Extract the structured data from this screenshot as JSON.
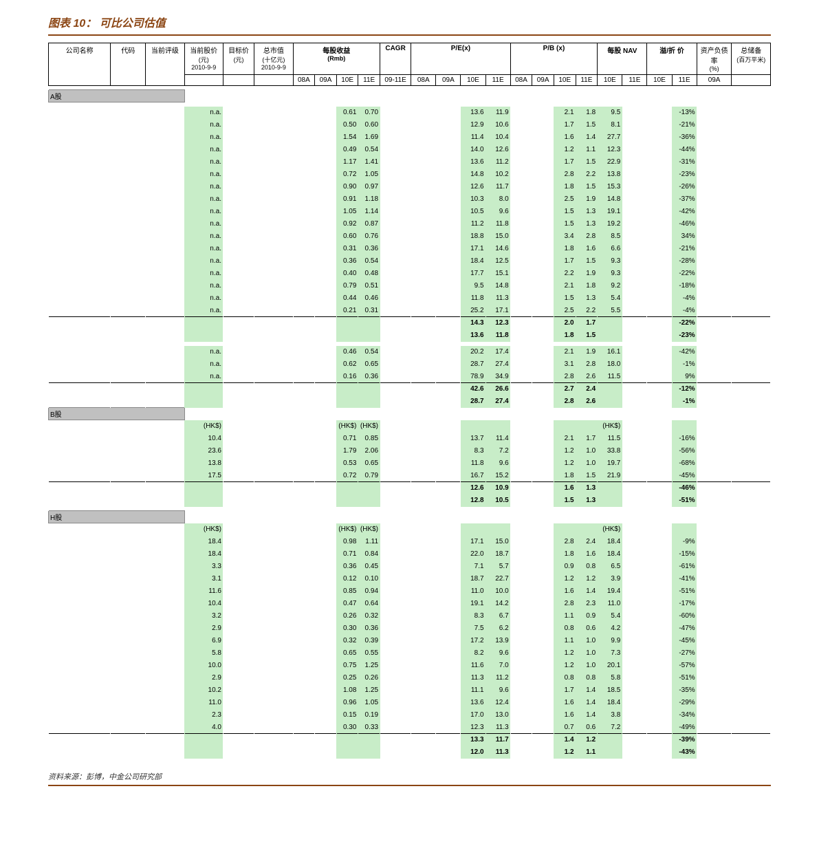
{
  "title": "图表 10： 可比公司估值",
  "source": "资料来源：彭博，中金公司研究部",
  "header": {
    "company": "公司名称",
    "code": "代码",
    "rating": "当前评级",
    "price": "当前股价",
    "price_unit": "(元)",
    "price_date": "2010-9-9",
    "target": "目标价",
    "target_unit": "(元)",
    "mcap": "总市值",
    "mcap_unit": "(十亿元)",
    "mcap_date": "2010-9-9",
    "eps_group": "每股收益",
    "eps_unit": "(Rmb)",
    "cagr": "CAGR",
    "pe_group": "P/E(x)",
    "pb_group": "P/B (x)",
    "nav_group": "每股\nNAV",
    "prem_group": "溢/折\n价",
    "debt": "资产负债率",
    "debt_unit": "(%)",
    "land": "总储备",
    "land_unit": "(百万平米)",
    "y08a": "08A",
    "y09a": "09A",
    "y10e": "10E",
    "y11e": "11E",
    "y0911e": "09-11E"
  },
  "sections": {
    "a": "A股",
    "b": "B股",
    "h": "H股",
    "hk": "(HK$)"
  },
  "rows_a1": [
    {
      "rating": "n.a.",
      "eps10": "0.61",
      "eps11": "0.70",
      "pe10": "13.6",
      "pe11": "11.9",
      "pb10": "2.1",
      "pb11": "1.8",
      "nav10": "9.5",
      "prem11": "-13%"
    },
    {
      "rating": "n.a.",
      "eps10": "0.50",
      "eps11": "0.60",
      "pe10": "12.9",
      "pe11": "10.6",
      "pb10": "1.7",
      "pb11": "1.5",
      "nav10": "8.1",
      "prem11": "-21%"
    },
    {
      "rating": "n.a.",
      "eps10": "1.54",
      "eps11": "1.69",
      "pe10": "11.4",
      "pe11": "10.4",
      "pb10": "1.6",
      "pb11": "1.4",
      "nav10": "27.7",
      "prem11": "-36%"
    },
    {
      "rating": "n.a.",
      "eps10": "0.49",
      "eps11": "0.54",
      "pe10": "14.0",
      "pe11": "12.6",
      "pb10": "1.2",
      "pb11": "1.1",
      "nav10": "12.3",
      "prem11": "-44%"
    },
    {
      "rating": "n.a.",
      "eps10": "1.17",
      "eps11": "1.41",
      "pe10": "13.6",
      "pe11": "11.2",
      "pb10": "1.7",
      "pb11": "1.5",
      "nav10": "22.9",
      "prem11": "-31%"
    },
    {
      "rating": "n.a.",
      "eps10": "0.72",
      "eps11": "1.05",
      "pe10": "14.8",
      "pe11": "10.2",
      "pb10": "2.8",
      "pb11": "2.2",
      "nav10": "13.8",
      "prem11": "-23%"
    },
    {
      "rating": "n.a.",
      "eps10": "0.90",
      "eps11": "0.97",
      "pe10": "12.6",
      "pe11": "11.7",
      "pb10": "1.8",
      "pb11": "1.5",
      "nav10": "15.3",
      "prem11": "-26%"
    },
    {
      "rating": "n.a.",
      "eps10": "0.91",
      "eps11": "1.18",
      "pe10": "10.3",
      "pe11": "8.0",
      "pb10": "2.5",
      "pb11": "1.9",
      "nav10": "14.8",
      "prem11": "-37%"
    },
    {
      "rating": "n.a.",
      "eps10": "1.05",
      "eps11": "1.14",
      "pe10": "10.5",
      "pe11": "9.6",
      "pb10": "1.5",
      "pb11": "1.3",
      "nav10": "19.1",
      "prem11": "-42%"
    },
    {
      "rating": "n.a.",
      "eps10": "0.92",
      "eps11": "0.87",
      "pe10": "11.2",
      "pe11": "11.8",
      "pb10": "1.5",
      "pb11": "1.3",
      "nav10": "19.2",
      "prem11": "-46%"
    },
    {
      "rating": "n.a.",
      "eps10": "0.60",
      "eps11": "0.76",
      "pe10": "18.8",
      "pe11": "15.0",
      "pb10": "3.4",
      "pb11": "2.8",
      "nav10": "8.5",
      "prem11": "34%"
    },
    {
      "rating": "n.a.",
      "eps10": "0.31",
      "eps11": "0.36",
      "pe10": "17.1",
      "pe11": "14.6",
      "pb10": "1.8",
      "pb11": "1.6",
      "nav10": "6.6",
      "prem11": "-21%"
    },
    {
      "rating": "n.a.",
      "eps10": "0.36",
      "eps11": "0.54",
      "pe10": "18.4",
      "pe11": "12.5",
      "pb10": "1.7",
      "pb11": "1.5",
      "nav10": "9.3",
      "prem11": "-28%"
    },
    {
      "rating": "n.a.",
      "eps10": "0.40",
      "eps11": "0.48",
      "pe10": "17.7",
      "pe11": "15.1",
      "pb10": "2.2",
      "pb11": "1.9",
      "nav10": "9.3",
      "prem11": "-22%"
    },
    {
      "rating": "n.a.",
      "eps10": "0.79",
      "eps11": "0.51",
      "pe10": "9.5",
      "pe11": "14.8",
      "pb10": "2.1",
      "pb11": "1.8",
      "nav10": "9.2",
      "prem11": "-18%"
    },
    {
      "rating": "n.a.",
      "eps10": "0.44",
      "eps11": "0.46",
      "pe10": "11.8",
      "pe11": "11.3",
      "pb10": "1.5",
      "pb11": "1.3",
      "nav10": "5.4",
      "prem11": "-4%"
    },
    {
      "rating": "n.a.",
      "eps10": "0.21",
      "eps11": "0.31",
      "pe10": "25.2",
      "pe11": "17.1",
      "pb10": "2.5",
      "pb11": "2.2",
      "nav10": "5.5",
      "prem11": "-4%"
    }
  ],
  "summary_a1": [
    {
      "pe10": "14.3",
      "pe11": "12.3",
      "pb10": "2.0",
      "pb11": "1.7",
      "prem11": "-22%"
    },
    {
      "pe10": "13.6",
      "pe11": "11.8",
      "pb10": "1.8",
      "pb11": "1.5",
      "prem11": "-23%"
    }
  ],
  "rows_a2": [
    {
      "rating": "n.a.",
      "eps10": "0.46",
      "eps11": "0.54",
      "pe10": "20.2",
      "pe11": "17.4",
      "pb10": "2.1",
      "pb11": "1.9",
      "nav10": "16.1",
      "prem11": "-42%"
    },
    {
      "rating": "n.a.",
      "eps10": "0.62",
      "eps11": "0.65",
      "pe10": "28.7",
      "pe11": "27.4",
      "pb10": "3.1",
      "pb11": "2.8",
      "nav10": "18.0",
      "prem11": "-1%"
    },
    {
      "rating": "n.a.",
      "eps10": "0.16",
      "eps11": "0.36",
      "pe10": "78.9",
      "pe11": "34.9",
      "pb10": "2.8",
      "pb11": "2.6",
      "nav10": "11.5",
      "prem11": "9%"
    }
  ],
  "summary_a2": [
    {
      "pe10": "42.6",
      "pe11": "26.6",
      "pb10": "2.7",
      "pb11": "2.4",
      "prem11": "-12%"
    },
    {
      "pe10": "28.7",
      "pe11": "27.4",
      "pb10": "2.8",
      "pb11": "2.6",
      "prem11": "-1%"
    }
  ],
  "rows_b": [
    {
      "price": "10.4",
      "eps10": "0.71",
      "eps11": "0.85",
      "pe10": "13.7",
      "pe11": "11.4",
      "pb10": "2.1",
      "pb11": "1.7",
      "nav10": "11.5",
      "prem11": "-16%"
    },
    {
      "price": "23.6",
      "eps10": "1.79",
      "eps11": "2.06",
      "pe10": "8.3",
      "pe11": "7.2",
      "pb10": "1.2",
      "pb11": "1.0",
      "nav10": "33.8",
      "prem11": "-56%"
    },
    {
      "price": "13.8",
      "eps10": "0.53",
      "eps11": "0.65",
      "pe10": "11.8",
      "pe11": "9.6",
      "pb10": "1.2",
      "pb11": "1.0",
      "nav10": "19.7",
      "prem11": "-68%"
    },
    {
      "price": "17.5",
      "eps10": "0.72",
      "eps11": "0.79",
      "pe10": "16.7",
      "pe11": "15.2",
      "pb10": "1.8",
      "pb11": "1.5",
      "nav10": "21.9",
      "prem11": "-45%"
    }
  ],
  "summary_b": [
    {
      "pe10": "12.6",
      "pe11": "10.9",
      "pb10": "1.6",
      "pb11": "1.3",
      "prem11": "-46%"
    },
    {
      "pe10": "12.8",
      "pe11": "10.5",
      "pb10": "1.5",
      "pb11": "1.3",
      "prem11": "-51%"
    }
  ],
  "rows_h": [
    {
      "price": "18.4",
      "eps10": "0.98",
      "eps11": "1.11",
      "pe10": "17.1",
      "pe11": "15.0",
      "pb10": "2.8",
      "pb11": "2.4",
      "nav10": "18.4",
      "prem11": "-9%"
    },
    {
      "price": "18.4",
      "eps10": "0.71",
      "eps11": "0.84",
      "pe10": "22.0",
      "pe11": "18.7",
      "pb10": "1.8",
      "pb11": "1.6",
      "nav10": "18.4",
      "prem11": "-15%"
    },
    {
      "price": "3.3",
      "eps10": "0.36",
      "eps11": "0.45",
      "pe10": "7.1",
      "pe11": "5.7",
      "pb10": "0.9",
      "pb11": "0.8",
      "nav10": "6.5",
      "prem11": "-61%"
    },
    {
      "price": "3.1",
      "eps10": "0.12",
      "eps11": "0.10",
      "pe10": "18.7",
      "pe11": "22.7",
      "pb10": "1.2",
      "pb11": "1.2",
      "nav10": "3.9",
      "prem11": "-41%"
    },
    {
      "price": "11.6",
      "eps10": "0.85",
      "eps11": "0.94",
      "pe10": "11.0",
      "pe11": "10.0",
      "pb10": "1.6",
      "pb11": "1.4",
      "nav10": "19.4",
      "prem11": "-51%"
    },
    {
      "price": "10.4",
      "eps10": "0.47",
      "eps11": "0.64",
      "pe10": "19.1",
      "pe11": "14.2",
      "pb10": "2.8",
      "pb11": "2.3",
      "nav10": "11.0",
      "prem11": "-17%"
    },
    {
      "price": "3.2",
      "eps10": "0.26",
      "eps11": "0.32",
      "pe10": "8.3",
      "pe11": "6.7",
      "pb10": "1.1",
      "pb11": "0.9",
      "nav10": "5.4",
      "prem11": "-60%"
    },
    {
      "price": "2.9",
      "eps10": "0.30",
      "eps11": "0.36",
      "pe10": "7.5",
      "pe11": "6.2",
      "pb10": "0.8",
      "pb11": "0.6",
      "nav10": "4.2",
      "prem11": "-47%"
    },
    {
      "price": "6.9",
      "eps10": "0.32",
      "eps11": "0.39",
      "pe10": "17.2",
      "pe11": "13.9",
      "pb10": "1.1",
      "pb11": "1.0",
      "nav10": "9.9",
      "prem11": "-45%"
    },
    {
      "price": "5.8",
      "eps10": "0.65",
      "eps11": "0.55",
      "pe10": "8.2",
      "pe11": "9.6",
      "pb10": "1.2",
      "pb11": "1.0",
      "nav10": "7.3",
      "prem11": "-27%"
    },
    {
      "price": "10.0",
      "eps10": "0.75",
      "eps11": "1.25",
      "pe10": "11.6",
      "pe11": "7.0",
      "pb10": "1.2",
      "pb11": "1.0",
      "nav10": "20.1",
      "prem11": "-57%"
    },
    {
      "price": "2.9",
      "eps10": "0.25",
      "eps11": "0.26",
      "pe10": "11.3",
      "pe11": "11.2",
      "pb10": "0.8",
      "pb11": "0.8",
      "nav10": "5.8",
      "prem11": "-51%"
    },
    {
      "price": "10.2",
      "eps10": "1.08",
      "eps11": "1.25",
      "pe10": "11.1",
      "pe11": "9.6",
      "pb10": "1.7",
      "pb11": "1.4",
      "nav10": "18.5",
      "prem11": "-35%"
    },
    {
      "price": "11.0",
      "eps10": "0.96",
      "eps11": "1.05",
      "pe10": "13.6",
      "pe11": "12.4",
      "pb10": "1.6",
      "pb11": "1.4",
      "nav10": "18.4",
      "prem11": "-29%"
    },
    {
      "price": "2.3",
      "eps10": "0.15",
      "eps11": "0.19",
      "pe10": "17.0",
      "pe11": "13.0",
      "pb10": "1.6",
      "pb11": "1.4",
      "nav10": "3.8",
      "prem11": "-34%"
    },
    {
      "price": "4.0",
      "eps10": "0.30",
      "eps11": "0.33",
      "pe10": "12.3",
      "pe11": "11.3",
      "pb10": "0.7",
      "pb11": "0.6",
      "nav10": "7.2",
      "prem11": "-49%"
    }
  ],
  "summary_h": [
    {
      "pe10": "13.3",
      "pe11": "11.7",
      "pb10": "1.4",
      "pb11": "1.2",
      "prem11": "-39%"
    },
    {
      "pe10": "12.0",
      "pe11": "11.3",
      "pb10": "1.2",
      "pb11": "1.1",
      "prem11": "-43%"
    }
  ],
  "styling": {
    "title_color": "#8b4513",
    "row_green": "#c8edc8",
    "section_gray": "#c0c0c0",
    "font_size_body": 10,
    "font_size_header": 10,
    "border_color": "#000000"
  }
}
